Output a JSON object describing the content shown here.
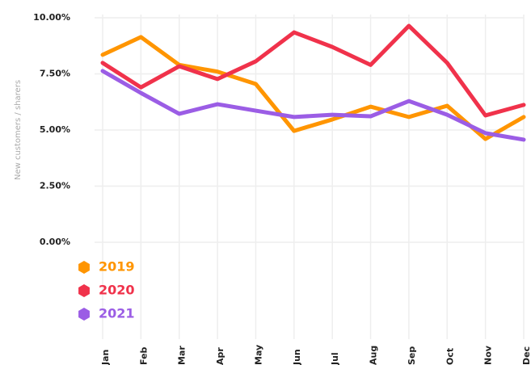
{
  "chart_data": {
    "type": "line",
    "y_label": "New customers / sharers",
    "categories": [
      "Jan",
      "Feb",
      "Mar",
      "Apr",
      "May",
      "Jun",
      "Jul",
      "Aug",
      "Sep",
      "Oct",
      "Nov",
      "Dec"
    ],
    "series": [
      {
        "name": "2019",
        "color": "#ff9500",
        "values": [
          8.35,
          9.14,
          7.9,
          7.6,
          7.05,
          4.96,
          5.47,
          6.04,
          5.58,
          6.08,
          4.6,
          5.58
        ]
      },
      {
        "name": "2020",
        "color": "#f0324b",
        "values": [
          7.99,
          6.9,
          7.84,
          7.27,
          8.06,
          9.35,
          8.7,
          7.9,
          9.64,
          7.99,
          5.65,
          6.12
        ]
      },
      {
        "name": "2021",
        "color": "#9b5de5",
        "values": [
          7.63,
          6.65,
          5.72,
          6.15,
          5.86,
          5.58,
          5.68,
          5.61,
          6.29,
          5.68,
          4.86,
          4.57
        ]
      }
    ],
    "ylim": [
      0,
      10
    ],
    "yticks": [
      {
        "value": 0,
        "label": "0.00%"
      },
      {
        "value": 2.5,
        "label": "2.50%"
      },
      {
        "value": 5,
        "label": "5.00%"
      },
      {
        "value": 7.5,
        "label": "7.50%"
      },
      {
        "value": 10,
        "label": "10.00%"
      }
    ],
    "grid": true,
    "legend": "bottom-left"
  }
}
